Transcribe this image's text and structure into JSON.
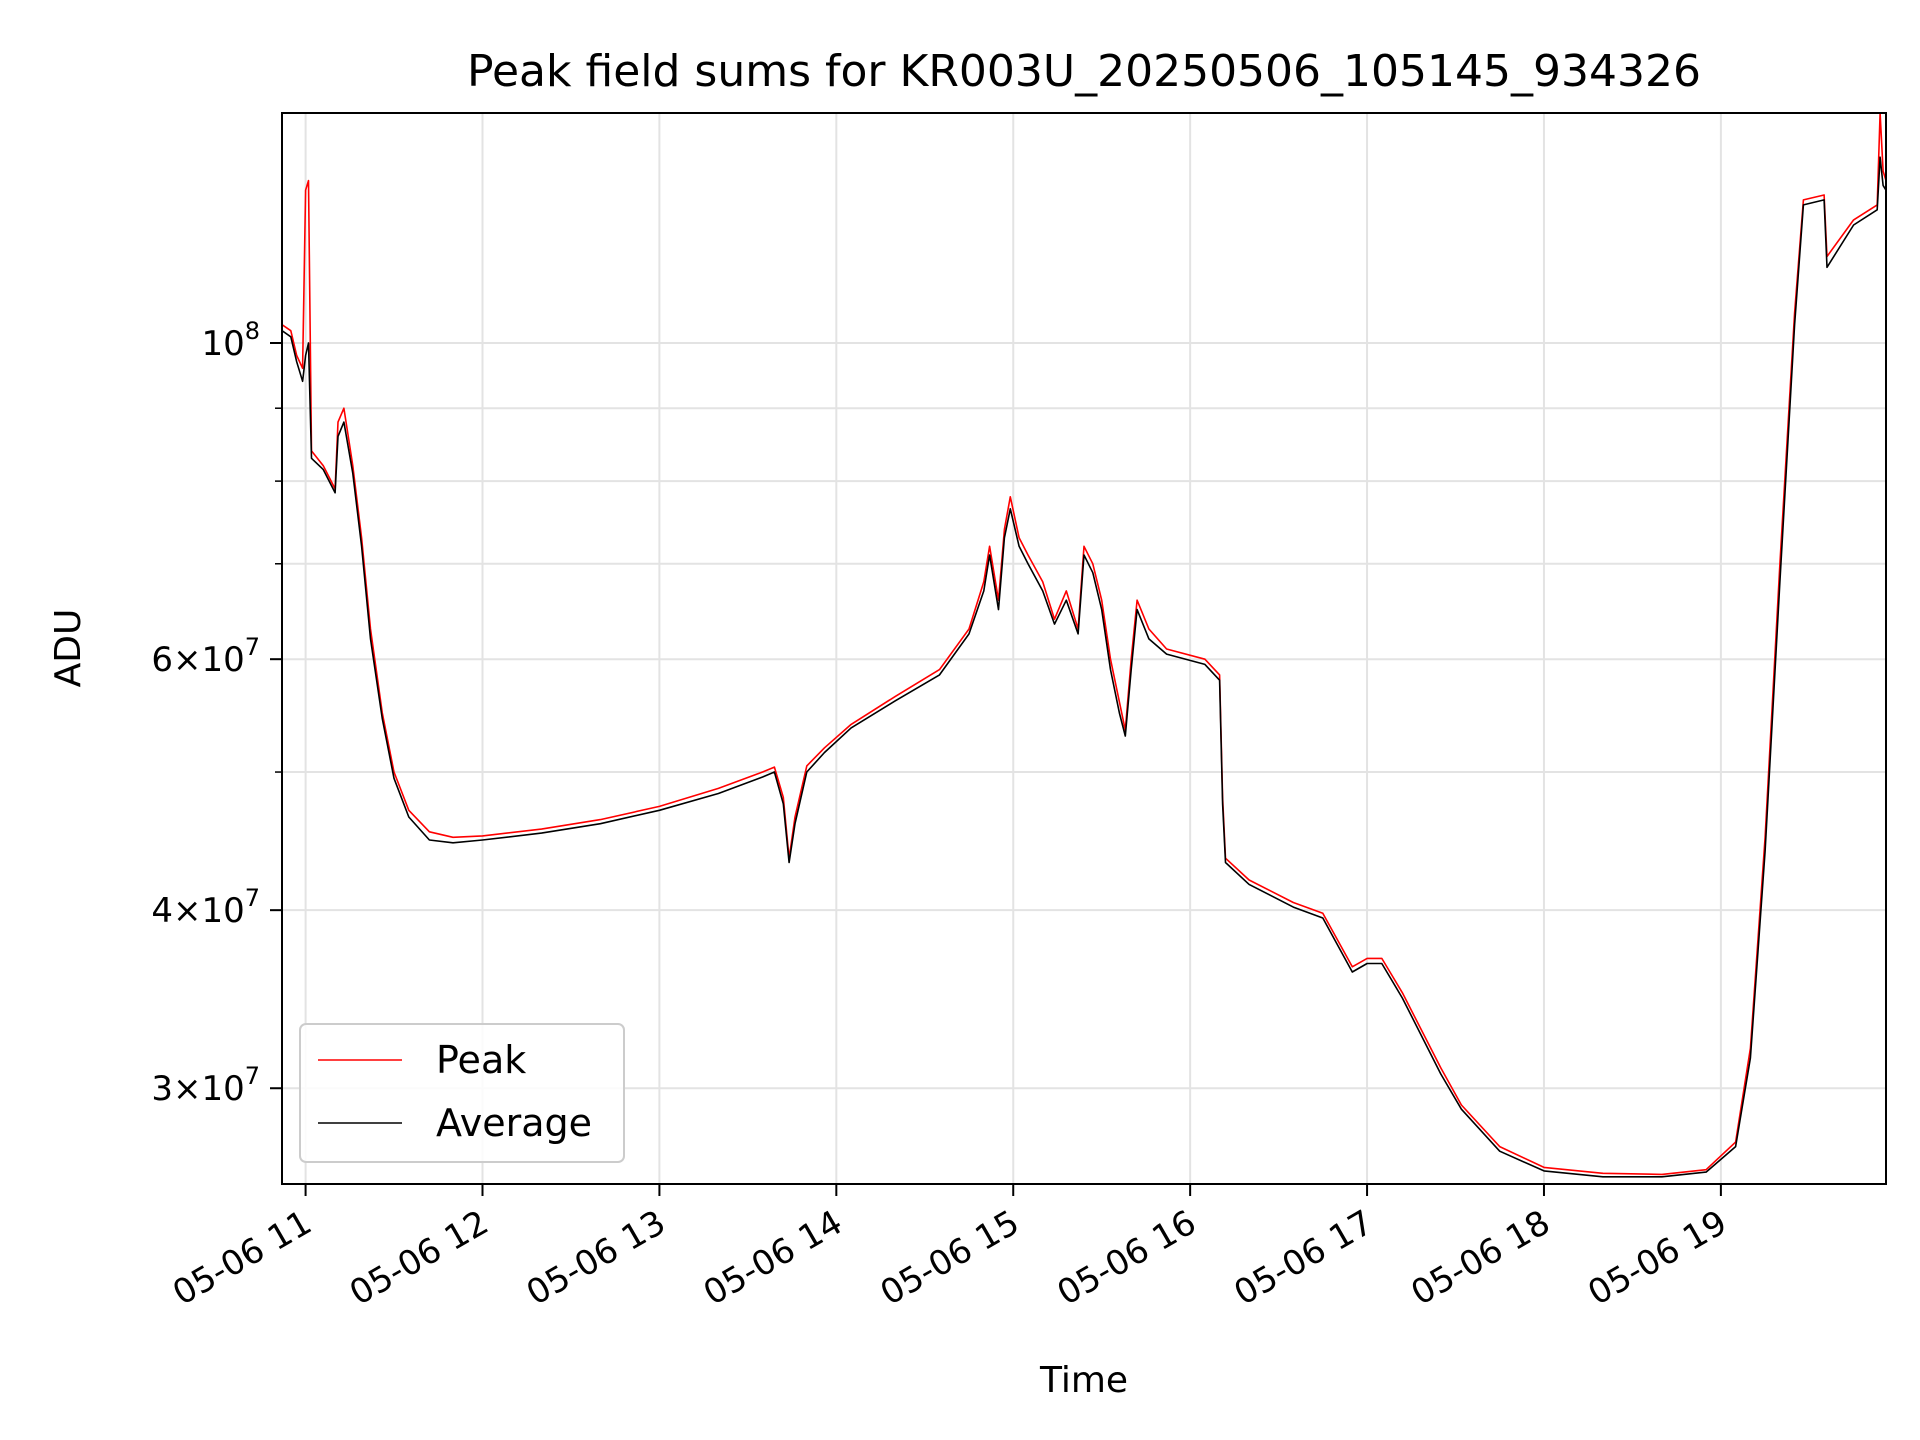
{
  "chart_data": {
    "type": "line",
    "title": "Peak field sums for KR003U_20250506_105145_934326",
    "xlabel": "Time",
    "ylabel": "ADU",
    "y_scale": "log",
    "ylim": [
      25700000,
      145000000
    ],
    "xlim": [
      "2025-05-06 10:52",
      "2025-05-06 19:56"
    ],
    "grid": true,
    "legend_position": "lower-left",
    "x_tick_labels": [
      "05-06 11",
      "05-06 12",
      "05-06 13",
      "05-06 14",
      "05-06 15",
      "05-06 16",
      "05-06 17",
      "05-06 18",
      "05-06 19"
    ],
    "x_ticks": [
      "2025-05-06 11:00",
      "2025-05-06 12:00",
      "2025-05-06 13:00",
      "2025-05-06 14:00",
      "2025-05-06 15:00",
      "2025-05-06 16:00",
      "2025-05-06 17:00",
      "2025-05-06 18:00",
      "2025-05-06 19:00"
    ],
    "y_major_ticks": [
      {
        "value": 30000000,
        "mantissa": "3",
        "exponent": "7"
      },
      {
        "value": 40000000,
        "mantissa": "4",
        "exponent": "7"
      },
      {
        "value": 60000000,
        "mantissa": "6",
        "exponent": "7"
      },
      {
        "value": 100000000,
        "mantissa": "",
        "exponent": "8"
      }
    ],
    "y_tick_base": "10",
    "y_tick_times": "×",
    "y_minor_ticks": [
      50000000,
      70000000,
      80000000,
      90000000
    ],
    "series": [
      {
        "name": "Peak",
        "color": "#ff0000",
        "points": [
          [
            "2025-05-06 10:52",
            103000000
          ],
          [
            "2025-05-06 10:55",
            102000000
          ],
          [
            "2025-05-06 10:57",
            98000000
          ],
          [
            "2025-05-06 10:59",
            96000000
          ],
          [
            "2025-05-06 11:00",
            128000000
          ],
          [
            "2025-05-06 11:01",
            130000000
          ],
          [
            "2025-05-06 11:02",
            84000000
          ],
          [
            "2025-05-06 11:06",
            82000000
          ],
          [
            "2025-05-06 11:10",
            79000000
          ],
          [
            "2025-05-06 11:11",
            88000000
          ],
          [
            "2025-05-06 11:13",
            90000000
          ],
          [
            "2025-05-06 11:16",
            82000000
          ],
          [
            "2025-05-06 11:19",
            73000000
          ],
          [
            "2025-05-06 11:22",
            63000000
          ],
          [
            "2025-05-06 11:26",
            55000000
          ],
          [
            "2025-05-06 11:30",
            50000000
          ],
          [
            "2025-05-06 11:35",
            47000000
          ],
          [
            "2025-05-06 11:42",
            45400000
          ],
          [
            "2025-05-06 11:50",
            45000000
          ],
          [
            "2025-05-06 12:00",
            45100000
          ],
          [
            "2025-05-06 12:20",
            45600000
          ],
          [
            "2025-05-06 12:40",
            46300000
          ],
          [
            "2025-05-06 13:00",
            47300000
          ],
          [
            "2025-05-06 13:20",
            48700000
          ],
          [
            "2025-05-06 13:35",
            50000000
          ],
          [
            "2025-05-06 13:39",
            50400000
          ],
          [
            "2025-05-06 13:42",
            48000000
          ],
          [
            "2025-05-06 13:44",
            43500000
          ],
          [
            "2025-05-06 13:46",
            46500000
          ],
          [
            "2025-05-06 13:50",
            50500000
          ],
          [
            "2025-05-06 13:56",
            52000000
          ],
          [
            "2025-05-06 14:05",
            54000000
          ],
          [
            "2025-05-06 14:20",
            56500000
          ],
          [
            "2025-05-06 14:35",
            59000000
          ],
          [
            "2025-05-06 14:45",
            63000000
          ],
          [
            "2025-05-06 14:50",
            68000000
          ],
          [
            "2025-05-06 14:52",
            72000000
          ],
          [
            "2025-05-06 14:55",
            66000000
          ],
          [
            "2025-05-06 14:57",
            74000000
          ],
          [
            "2025-05-06 14:59",
            78000000
          ],
          [
            "2025-05-06 15:02",
            73000000
          ],
          [
            "2025-05-06 15:05",
            71000000
          ],
          [
            "2025-05-06 15:10",
            68000000
          ],
          [
            "2025-05-06 15:14",
            64000000
          ],
          [
            "2025-05-06 15:18",
            67000000
          ],
          [
            "2025-05-06 15:22",
            63000000
          ],
          [
            "2025-05-06 15:24",
            72000000
          ],
          [
            "2025-05-06 15:27",
            70000000
          ],
          [
            "2025-05-06 15:30",
            66000000
          ],
          [
            "2025-05-06 15:33",
            60000000
          ],
          [
            "2025-05-06 15:36",
            56000000
          ],
          [
            "2025-05-06 15:38",
            53500000
          ],
          [
            "2025-05-06 15:40",
            60000000
          ],
          [
            "2025-05-06 15:42",
            66000000
          ],
          [
            "2025-05-06 15:46",
            63000000
          ],
          [
            "2025-05-06 15:52",
            61000000
          ],
          [
            "2025-05-06 16:05",
            60000000
          ],
          [
            "2025-05-06 16:10",
            58500000
          ],
          [
            "2025-05-06 16:11",
            48000000
          ],
          [
            "2025-05-06 16:12",
            43500000
          ],
          [
            "2025-05-06 16:20",
            42000000
          ],
          [
            "2025-05-06 16:35",
            40500000
          ],
          [
            "2025-05-06 16:45",
            39800000
          ],
          [
            "2025-05-06 16:55",
            36500000
          ],
          [
            "2025-05-06 17:00",
            37000000
          ],
          [
            "2025-05-06 17:05",
            37000000
          ],
          [
            "2025-05-06 17:12",
            35000000
          ],
          [
            "2025-05-06 17:25",
            31000000
          ],
          [
            "2025-05-06 17:32",
            29200000
          ],
          [
            "2025-05-06 17:45",
            27300000
          ],
          [
            "2025-05-06 18:00",
            26400000
          ],
          [
            "2025-05-06 18:20",
            26150000
          ],
          [
            "2025-05-06 18:40",
            26100000
          ],
          [
            "2025-05-06 18:55",
            26300000
          ],
          [
            "2025-05-06 19:05",
            27500000
          ],
          [
            "2025-05-06 19:10",
            32000000
          ],
          [
            "2025-05-06 19:15",
            45000000
          ],
          [
            "2025-05-06 19:20",
            70000000
          ],
          [
            "2025-05-06 19:25",
            105000000
          ],
          [
            "2025-05-06 19:28",
            126000000
          ],
          [
            "2025-05-06 19:35",
            127000000
          ],
          [
            "2025-05-06 19:36",
            115000000
          ],
          [
            "2025-05-06 19:45",
            122000000
          ],
          [
            "2025-05-06 19:53",
            125000000
          ],
          [
            "2025-05-06 19:54",
            145000000
          ],
          [
            "2025-05-06 19:55",
            132000000
          ],
          [
            "2025-05-06 19:56",
            130000000
          ]
        ]
      },
      {
        "name": "Average",
        "color": "#000000",
        "points": [
          [
            "2025-05-06 10:52",
            102000000
          ],
          [
            "2025-05-06 10:55",
            101000000
          ],
          [
            "2025-05-06 10:57",
            97000000
          ],
          [
            "2025-05-06 10:59",
            94000000
          ],
          [
            "2025-05-06 11:00",
            98000000
          ],
          [
            "2025-05-06 11:01",
            100000000
          ],
          [
            "2025-05-06 11:02",
            83000000
          ],
          [
            "2025-05-06 11:06",
            81500000
          ],
          [
            "2025-05-06 11:10",
            78500000
          ],
          [
            "2025-05-06 11:11",
            86000000
          ],
          [
            "2025-05-06 11:13",
            88000000
          ],
          [
            "2025-05-06 11:16",
            81000000
          ],
          [
            "2025-05-06 11:19",
            72000000
          ],
          [
            "2025-05-06 11:22",
            62000000
          ],
          [
            "2025-05-06 11:26",
            54500000
          ],
          [
            "2025-05-06 11:30",
            49500000
          ],
          [
            "2025-05-06 11:35",
            46500000
          ],
          [
            "2025-05-06 11:42",
            44800000
          ],
          [
            "2025-05-06 11:50",
            44600000
          ],
          [
            "2025-05-06 12:00",
            44800000
          ],
          [
            "2025-05-06 12:20",
            45300000
          ],
          [
            "2025-05-06 12:40",
            46000000
          ],
          [
            "2025-05-06 13:00",
            47000000
          ],
          [
            "2025-05-06 13:20",
            48300000
          ],
          [
            "2025-05-06 13:35",
            49600000
          ],
          [
            "2025-05-06 13:39",
            50000000
          ],
          [
            "2025-05-06 13:42",
            47500000
          ],
          [
            "2025-05-06 13:44",
            43200000
          ],
          [
            "2025-05-06 13:46",
            46000000
          ],
          [
            "2025-05-06 13:50",
            50000000
          ],
          [
            "2025-05-06 13:56",
            51600000
          ],
          [
            "2025-05-06 14:05",
            53700000
          ],
          [
            "2025-05-06 14:20",
            56100000
          ],
          [
            "2025-05-06 14:35",
            58500000
          ],
          [
            "2025-05-06 14:45",
            62500000
          ],
          [
            "2025-05-06 14:50",
            67000000
          ],
          [
            "2025-05-06 14:52",
            71000000
          ],
          [
            "2025-05-06 14:55",
            65000000
          ],
          [
            "2025-05-06 14:57",
            73000000
          ],
          [
            "2025-05-06 14:59",
            76500000
          ],
          [
            "2025-05-06 15:02",
            72000000
          ],
          [
            "2025-05-06 15:05",
            70000000
          ],
          [
            "2025-05-06 15:10",
            67000000
          ],
          [
            "2025-05-06 15:14",
            63500000
          ],
          [
            "2025-05-06 15:18",
            66000000
          ],
          [
            "2025-05-06 15:22",
            62500000
          ],
          [
            "2025-05-06 15:24",
            71000000
          ],
          [
            "2025-05-06 15:27",
            69000000
          ],
          [
            "2025-05-06 15:30",
            65000000
          ],
          [
            "2025-05-06 15:33",
            59000000
          ],
          [
            "2025-05-06 15:36",
            55000000
          ],
          [
            "2025-05-06 15:38",
            53000000
          ],
          [
            "2025-05-06 15:40",
            59000000
          ],
          [
            "2025-05-06 15:42",
            65000000
          ],
          [
            "2025-05-06 15:46",
            62000000
          ],
          [
            "2025-05-06 15:52",
            60500000
          ],
          [
            "2025-05-06 16:05",
            59500000
          ],
          [
            "2025-05-06 16:10",
            58000000
          ],
          [
            "2025-05-06 16:11",
            47500000
          ],
          [
            "2025-05-06 16:12",
            43200000
          ],
          [
            "2025-05-06 16:20",
            41700000
          ],
          [
            "2025-05-06 16:35",
            40200000
          ],
          [
            "2025-05-06 16:45",
            39500000
          ],
          [
            "2025-05-06 16:55",
            36200000
          ],
          [
            "2025-05-06 17:00",
            36700000
          ],
          [
            "2025-05-06 17:05",
            36700000
          ],
          [
            "2025-05-06 17:12",
            34700000
          ],
          [
            "2025-05-06 17:25",
            30700000
          ],
          [
            "2025-05-06 17:32",
            29000000
          ],
          [
            "2025-05-06 17:45",
            27100000
          ],
          [
            "2025-05-06 18:00",
            26250000
          ],
          [
            "2025-05-06 18:20",
            26000000
          ],
          [
            "2025-05-06 18:40",
            26000000
          ],
          [
            "2025-05-06 18:55",
            26200000
          ],
          [
            "2025-05-06 19:05",
            27300000
          ],
          [
            "2025-05-06 19:10",
            31500000
          ],
          [
            "2025-05-06 19:15",
            44000000
          ],
          [
            "2025-05-06 19:20",
            68000000
          ],
          [
            "2025-05-06 19:25",
            103000000
          ],
          [
            "2025-05-06 19:28",
            125000000
          ],
          [
            "2025-05-06 19:35",
            126000000
          ],
          [
            "2025-05-06 19:36",
            113000000
          ],
          [
            "2025-05-06 19:45",
            121000000
          ],
          [
            "2025-05-06 19:53",
            124000000
          ],
          [
            "2025-05-06 19:54",
            135000000
          ],
          [
            "2025-05-06 19:55",
            129000000
          ],
          [
            "2025-05-06 19:56",
            128000000
          ]
        ]
      }
    ]
  }
}
